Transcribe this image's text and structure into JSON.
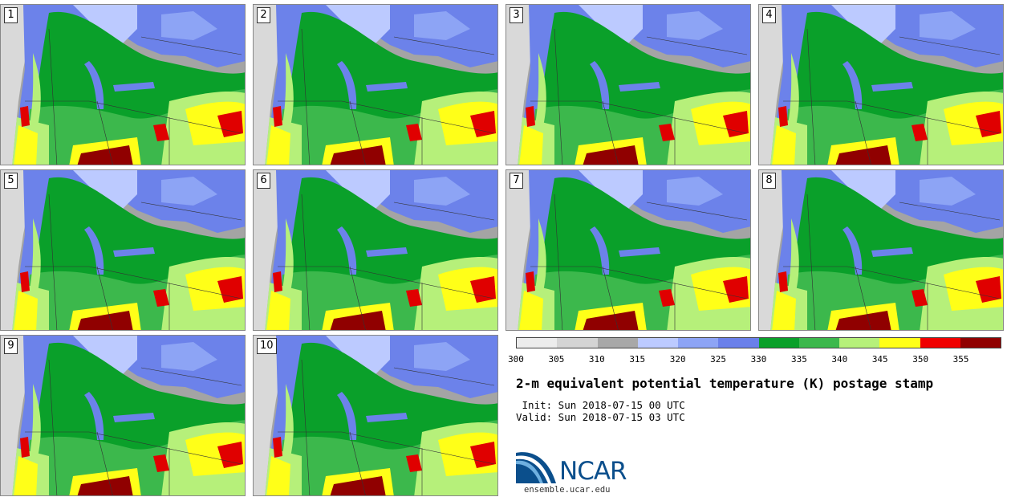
{
  "panels": [
    {
      "label": "1"
    },
    {
      "label": "2"
    },
    {
      "label": "3"
    },
    {
      "label": "4"
    },
    {
      "label": "5"
    },
    {
      "label": "6"
    },
    {
      "label": "7"
    },
    {
      "label": "8"
    },
    {
      "label": "9"
    },
    {
      "label": "10"
    }
  ],
  "colorbar": {
    "ticks": [
      "300",
      "305",
      "310",
      "315",
      "320",
      "325",
      "330",
      "335",
      "340",
      "345",
      "350",
      "355"
    ],
    "colors": [
      "#ececec",
      "#d4d4d4",
      "#a8a8a8",
      "#bccaff",
      "#8da4f5",
      "#6a80ea",
      "#0aa02a",
      "#3cb84c",
      "#b6f07a",
      "#ffff18",
      "#f00000",
      "#900000"
    ]
  },
  "title": "2-m equivalent potential temperature (K) postage stamp",
  "init_line": " Init: Sun 2018-07-15 00 UTC",
  "valid_line": "Valid: Sun 2018-07-15 03 UTC",
  "logo": {
    "text": "NCAR",
    "url": "ensemble.ucar.edu"
  }
}
